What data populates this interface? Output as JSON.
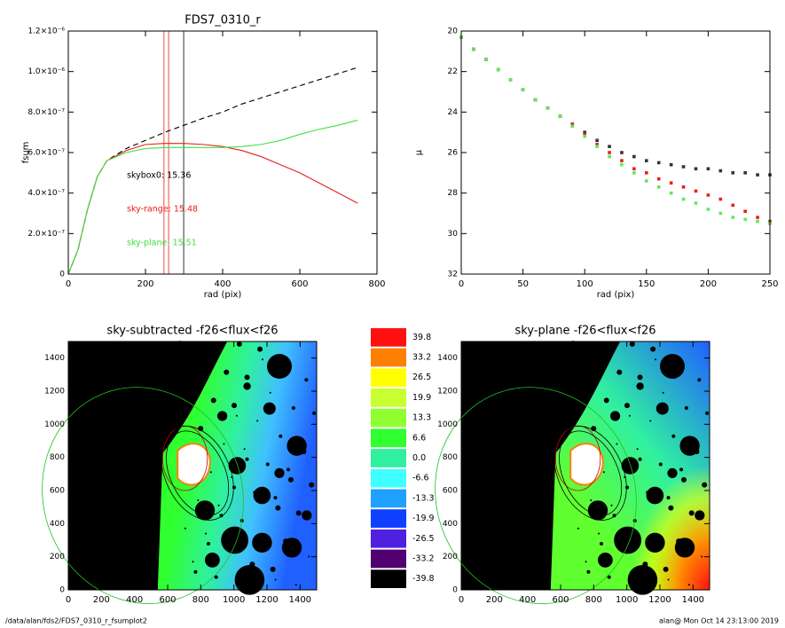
{
  "chart_data": [
    {
      "type": "line",
      "title": "FDS7_0310_r",
      "xlabel": "rad (pix)",
      "ylabel": "fsum",
      "xlim": [
        0,
        800
      ],
      "xticks": [
        0,
        200,
        400,
        600,
        800
      ],
      "ylim": [
        0,
        1.2e-06
      ],
      "yticks": [
        0,
        {
          "value": 2e-07,
          "label": "2.0×10⁻⁷"
        },
        {
          "value": 4e-07,
          "label": "4.0×10⁻⁷"
        },
        {
          "value": 6e-07,
          "label": "6.0×10⁻⁷"
        },
        {
          "value": 8e-07,
          "label": "8.0×10⁻⁷"
        },
        {
          "value": 1e-06,
          "label": "1.0×10⁻⁶"
        },
        {
          "value": 1.2e-06,
          "label": "1.2×10⁻⁶"
        }
      ],
      "x": [
        0,
        25,
        50,
        75,
        100,
        150,
        200,
        250,
        300,
        350,
        400,
        450,
        500,
        550,
        600,
        650,
        700,
        750
      ],
      "series": [
        {
          "color": "#000000",
          "dashed": true,
          "values": [
            0,
            1.2e-07,
            3.2e-07,
            4.8e-07,
            5.6e-07,
            6.2e-07,
            6.6e-07,
            7e-07,
            7.35e-07,
            7.7e-07,
            8e-07,
            8.4e-07,
            8.7e-07,
            9e-07,
            9.3e-07,
            9.6e-07,
            9.9e-07,
            1.02e-06
          ]
        },
        {
          "color": "#e8201a",
          "dashed": false,
          "values": [
            0,
            1.2e-07,
            3.2e-07,
            4.8e-07,
            5.6e-07,
            6.1e-07,
            6.4e-07,
            6.45e-07,
            6.45e-07,
            6.4e-07,
            6.3e-07,
            6.1e-07,
            5.8e-07,
            5.4e-07,
            5e-07,
            4.5e-07,
            4e-07,
            3.5e-07
          ]
        },
        {
          "color": "#40e040",
          "dashed": false,
          "values": [
            0,
            1.2e-07,
            3.2e-07,
            4.8e-07,
            5.6e-07,
            6e-07,
            6.2e-07,
            6.25e-07,
            6.25e-07,
            6.25e-07,
            6.25e-07,
            6.3e-07,
            6.4e-07,
            6.6e-07,
            6.9e-07,
            7.15e-07,
            7.35e-07,
            7.6e-07
          ]
        }
      ],
      "vlines": [
        {
          "x": 248,
          "color": "#e8201a"
        },
        {
          "x": 260,
          "color": "#e8201a"
        },
        {
          "x": 299,
          "color": "#000000"
        }
      ],
      "annotations": [
        {
          "text": "skybox0: 15.36",
          "color": "#000000"
        },
        {
          "text": "sky-range: 15.48",
          "color": "#e8201a"
        },
        {
          "text": "sky-plane: 15.51",
          "color": "#40e040"
        }
      ]
    },
    {
      "type": "scatter",
      "xlabel": "rad (pix)",
      "ylabel": "μ",
      "xlim": [
        0,
        250
      ],
      "xticks": [
        0,
        50,
        100,
        150,
        200,
        250
      ],
      "ylim": [
        32,
        20
      ],
      "yticks": [
        20,
        22,
        24,
        26,
        28,
        30,
        32
      ],
      "x": [
        0,
        10,
        20,
        30,
        40,
        50,
        60,
        70,
        80,
        90,
        100,
        110,
        120,
        130,
        140,
        150,
        160,
        170,
        180,
        190,
        200,
        210,
        220,
        230,
        240,
        250
      ],
      "series": [
        {
          "color": "#333333",
          "values": [
            20.3,
            20.9,
            21.4,
            21.9,
            22.4,
            22.9,
            23.4,
            23.8,
            24.2,
            24.6,
            25.0,
            25.4,
            25.7,
            26.0,
            26.2,
            26.4,
            26.5,
            26.6,
            26.7,
            26.8,
            26.8,
            26.9,
            27.0,
            27.0,
            27.1,
            27.1
          ]
        },
        {
          "color": "#e8201a",
          "values": [
            20.3,
            20.9,
            21.4,
            21.9,
            22.4,
            22.9,
            23.4,
            23.8,
            24.2,
            24.6,
            25.1,
            25.6,
            26.0,
            26.4,
            26.8,
            27.0,
            27.3,
            27.5,
            27.7,
            27.9,
            28.1,
            28.3,
            28.6,
            28.9,
            29.2,
            29.4
          ]
        },
        {
          "color": "#60e860",
          "values": [
            20.3,
            20.9,
            21.4,
            21.9,
            22.4,
            22.9,
            23.4,
            23.8,
            24.2,
            24.7,
            25.2,
            25.7,
            26.2,
            26.6,
            27.0,
            27.4,
            27.7,
            28.0,
            28.3,
            28.5,
            28.8,
            29.0,
            29.2,
            29.3,
            29.4,
            29.5
          ]
        }
      ]
    },
    {
      "type": "image",
      "title": "sky-subtracted -f26<flux<f26",
      "variant": "subtracted",
      "xlim": [
        0,
        1500
      ],
      "xticks": [
        0,
        200,
        400,
        600,
        800,
        1000,
        1200,
        1400
      ],
      "ylim": [
        0,
        1500
      ],
      "yticks": [
        0,
        200,
        400,
        600,
        800,
        1000,
        1200,
        1400
      ]
    },
    {
      "type": "colorbar",
      "levels": [
        39.8,
        33.2,
        26.5,
        19.9,
        13.3,
        6.6,
        {
          "value": 0,
          "label": "0.0"
        },
        -6.6,
        -13.3,
        -19.9,
        -26.5,
        -33.2,
        -39.8
      ],
      "colors": [
        "#ff1010",
        "#ff8000",
        "#ffff00",
        "#c8ff30",
        "#90ff30",
        "#30ff30",
        "#30f0a0",
        "#40ffff",
        "#20a0ff",
        "#1040ff",
        "#5020e0",
        "#500070",
        "#000000"
      ]
    },
    {
      "type": "image",
      "title": "sky-plane -f26<flux<f26",
      "variant": "plane",
      "xlim": [
        0,
        1500
      ],
      "xticks": [
        0,
        200,
        400,
        600,
        800,
        1000,
        1200,
        1400
      ],
      "ylim": [
        0,
        1500
      ],
      "yticks": [
        0,
        200,
        400,
        600,
        800,
        1000,
        1200,
        1400
      ]
    }
  ],
  "footer": {
    "path": "/data/alan/fds2/FDS7_0310_r_fsumplot2",
    "stamp": "alan@  Mon Oct 14 23:13:00 2019"
  }
}
